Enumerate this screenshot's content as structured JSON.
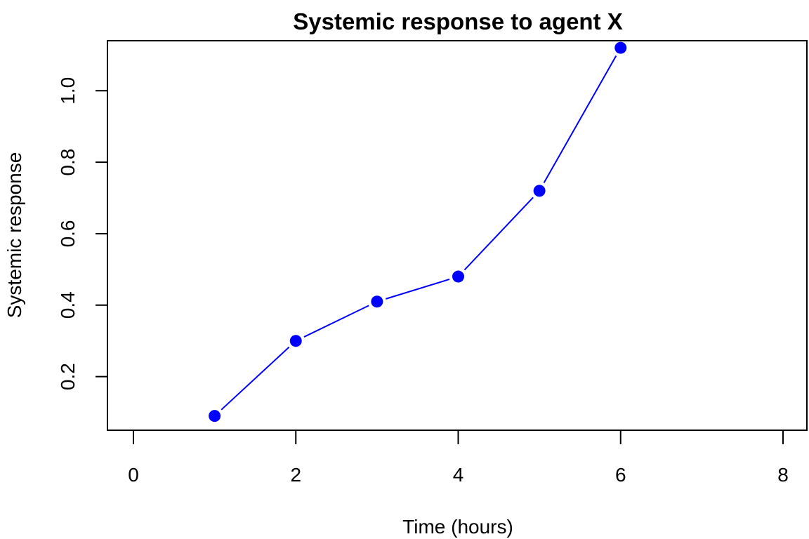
{
  "chart_data": {
    "type": "line",
    "title": "Systemic response to agent X",
    "xlabel": "Time (hours)",
    "ylabel": "Systemic response",
    "xlim": [
      0,
      8
    ],
    "ylim": [
      0.05,
      1.14
    ],
    "xticks": [
      "0",
      "2",
      "4",
      "6",
      "8"
    ],
    "yticks": [
      "0.2",
      "0.4",
      "0.6",
      "0.8",
      "1.0"
    ],
    "grid": false,
    "series": [
      {
        "x": [
          1,
          2,
          3,
          4,
          5,
          6
        ],
        "y": [
          0.09,
          0.3,
          0.41,
          0.48,
          0.72,
          1.12
        ],
        "color": "#0000ff",
        "marker": "filled-circle"
      }
    ]
  }
}
